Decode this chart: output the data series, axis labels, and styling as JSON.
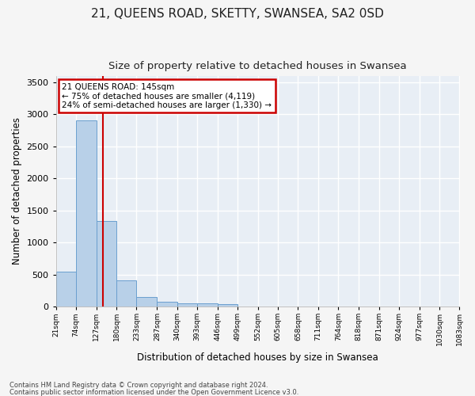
{
  "title1": "21, QUEENS ROAD, SKETTY, SWANSEA, SA2 0SD",
  "title2": "Size of property relative to detached houses in Swansea",
  "xlabel": "Distribution of detached houses by size in Swansea",
  "ylabel": "Number of detached properties",
  "bin_labels": [
    "21sqm",
    "74sqm",
    "127sqm",
    "180sqm",
    "233sqm",
    "287sqm",
    "340sqm",
    "393sqm",
    "446sqm",
    "499sqm",
    "552sqm",
    "605sqm",
    "658sqm",
    "711sqm",
    "764sqm",
    "818sqm",
    "871sqm",
    "924sqm",
    "977sqm",
    "1030sqm",
    "1083sqm"
  ],
  "bin_edges": [
    21,
    74,
    127,
    180,
    233,
    287,
    340,
    393,
    446,
    499,
    552,
    605,
    658,
    711,
    764,
    818,
    871,
    924,
    977,
    1030,
    1083
  ],
  "bar_heights": [
    550,
    2900,
    1330,
    410,
    155,
    80,
    55,
    45,
    35,
    0,
    0,
    0,
    0,
    0,
    0,
    0,
    0,
    0,
    0,
    0
  ],
  "bar_color": "#b8d0e8",
  "bar_edge_color": "#6a9fcf",
  "vline_x": 145,
  "vline_color": "#cc0000",
  "ylim": [
    0,
    3600
  ],
  "yticks": [
    0,
    500,
    1000,
    1500,
    2000,
    2500,
    3000,
    3500
  ],
  "annotation_title": "21 QUEENS ROAD: 145sqm",
  "annotation_line1": "← 75% of detached houses are smaller (4,119)",
  "annotation_line2": "24% of semi-detached houses are larger (1,330) →",
  "annotation_box_color": "#cc0000",
  "footer1": "Contains HM Land Registry data © Crown copyright and database right 2024.",
  "footer2": "Contains public sector information licensed under the Open Government Licence v3.0.",
  "bg_color": "#e8eef5",
  "grid_color": "#ffffff",
  "fig_bg_color": "#f5f5f5",
  "title1_fontsize": 11,
  "title2_fontsize": 9.5
}
